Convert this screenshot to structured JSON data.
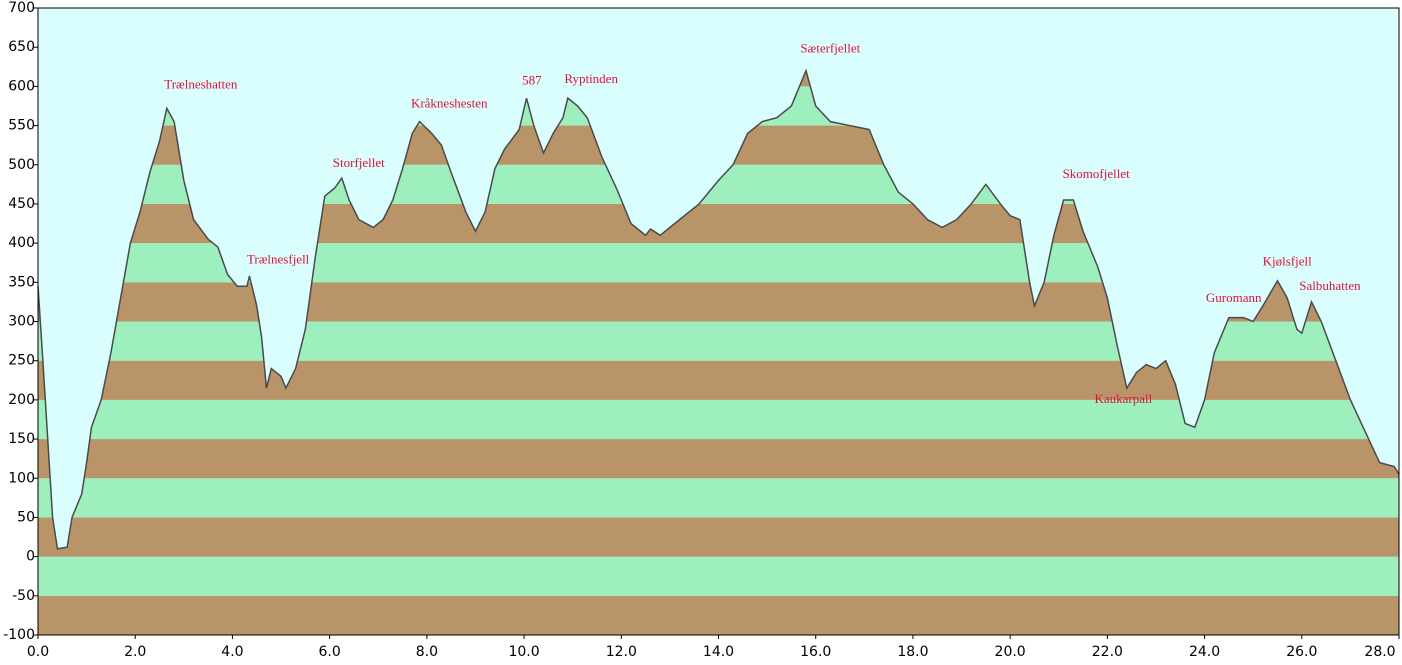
{
  "chart_data": {
    "type": "area",
    "x": [
      0,
      0.1,
      0.2,
      0.3,
      0.4,
      0.6,
      0.7,
      0.9,
      1.0,
      1.1,
      1.3,
      1.5,
      1.7,
      1.9,
      2.1,
      2.3,
      2.5,
      2.65,
      2.8,
      3.0,
      3.2,
      3.5,
      3.7,
      3.9,
      4.1,
      4.3,
      4.35,
      4.5,
      4.6,
      4.7,
      4.8,
      5.0,
      5.1,
      5.3,
      5.5,
      5.7,
      5.9,
      6.1,
      6.25,
      6.4,
      6.6,
      6.9,
      7.1,
      7.3,
      7.5,
      7.7,
      7.85,
      8.1,
      8.3,
      8.5,
      8.8,
      9.0,
      9.2,
      9.4,
      9.6,
      9.9,
      10.05,
      10.2,
      10.4,
      10.6,
      10.8,
      10.9,
      11.1,
      11.3,
      11.6,
      11.9,
      12.2,
      12.5,
      12.6,
      12.8,
      13.2,
      13.6,
      14.0,
      14.3,
      14.6,
      14.9,
      15.2,
      15.5,
      15.8,
      16.0,
      16.3,
      16.7,
      17.1,
      17.4,
      17.7,
      18.0,
      18.3,
      18.6,
      18.9,
      19.2,
      19.5,
      19.8,
      20.0,
      20.2,
      20.4,
      20.5,
      20.7,
      20.9,
      21.1,
      21.3,
      21.5,
      21.8,
      22.0,
      22.2,
      22.4,
      22.6,
      22.8,
      23.0,
      23.2,
      23.4,
      23.6,
      23.8,
      24.0,
      24.2,
      24.5,
      24.8,
      25.0,
      25.2,
      25.5,
      25.7,
      25.9,
      26.0,
      26.2,
      26.4,
      26.7,
      27.0,
      27.3,
      27.6,
      27.9,
      28.0
    ],
    "values": [
      345,
      250,
      150,
      50,
      10,
      12,
      50,
      80,
      120,
      165,
      200,
      260,
      330,
      400,
      440,
      490,
      530,
      572,
      555,
      480,
      430,
      405,
      395,
      360,
      345,
      345,
      358,
      320,
      280,
      215,
      240,
      230,
      215,
      240,
      290,
      380,
      460,
      470,
      483,
      455,
      430,
      420,
      430,
      455,
      495,
      540,
      555,
      540,
      525,
      490,
      440,
      415,
      440,
      495,
      520,
      545,
      585,
      550,
      515,
      540,
      560,
      585,
      575,
      560,
      510,
      470,
      425,
      410,
      418,
      410,
      430,
      450,
      480,
      500,
      540,
      555,
      560,
      575,
      620,
      575,
      555,
      550,
      545,
      500,
      465,
      450,
      430,
      420,
      430,
      450,
      475,
      450,
      435,
      430,
      350,
      320,
      350,
      410,
      455,
      455,
      415,
      370,
      330,
      270,
      215,
      235,
      245,
      240,
      250,
      220,
      170,
      165,
      200,
      260,
      305,
      305,
      300,
      320,
      352,
      330,
      290,
      285,
      325,
      300,
      250,
      200,
      160,
      120,
      115,
      105
    ],
    "line_color": "#4a4a4a",
    "background": "#dafdfd",
    "band_colors": [
      "#b89468",
      "#9df0bd"
    ],
    "xlim": [
      0,
      28
    ],
    "ylim": [
      -100,
      700
    ],
    "xticks": [
      {
        "value": 0,
        "label": "0.0"
      },
      {
        "value": 2,
        "label": "2.0"
      },
      {
        "value": 4,
        "label": "4.0"
      },
      {
        "value": 6,
        "label": "6.0"
      },
      {
        "value": 8,
        "label": "8.0"
      },
      {
        "value": 10,
        "label": "10.0"
      },
      {
        "value": 12,
        "label": "12.0"
      },
      {
        "value": 14,
        "label": "14.0"
      },
      {
        "value": 16,
        "label": "16.0"
      },
      {
        "value": 18,
        "label": "18.0"
      },
      {
        "value": 20,
        "label": "20.0"
      },
      {
        "value": 22,
        "label": "22.0"
      },
      {
        "value": 24,
        "label": "24.0"
      },
      {
        "value": 26,
        "label": "26.0"
      },
      {
        "value": 28,
        "label": "28.0"
      }
    ],
    "yticks": [
      -100,
      -50,
      0,
      50,
      100,
      150,
      200,
      250,
      300,
      350,
      400,
      450,
      500,
      550,
      600,
      650,
      700
    ],
    "annotations": [
      {
        "text": "Trælneshatten",
        "x": 3.35,
        "y": 601
      },
      {
        "text": "Trælnesfjell",
        "x": 4.94,
        "y": 378
      },
      {
        "text": "Storfjellet",
        "x": 6.6,
        "y": 501
      },
      {
        "text": "Kråkneshesten",
        "x": 8.46,
        "y": 577
      },
      {
        "text": "587",
        "x": 10.16,
        "y": 606
      },
      {
        "text": "Ryptinden",
        "x": 11.38,
        "y": 608
      },
      {
        "text": "Sæterfjellet",
        "x": 16.3,
        "y": 647
      },
      {
        "text": "Skomofjellet",
        "x": 21.77,
        "y": 487
      },
      {
        "text": "Kaukarpall",
        "x": 22.33,
        "y": 200
      },
      {
        "text": "Guromann",
        "x": 24.6,
        "y": 329
      },
      {
        "text": "Kjølsfjell",
        "x": 25.7,
        "y": 375
      },
      {
        "text": "Salbuhatten",
        "x": 26.58,
        "y": 344
      }
    ]
  }
}
